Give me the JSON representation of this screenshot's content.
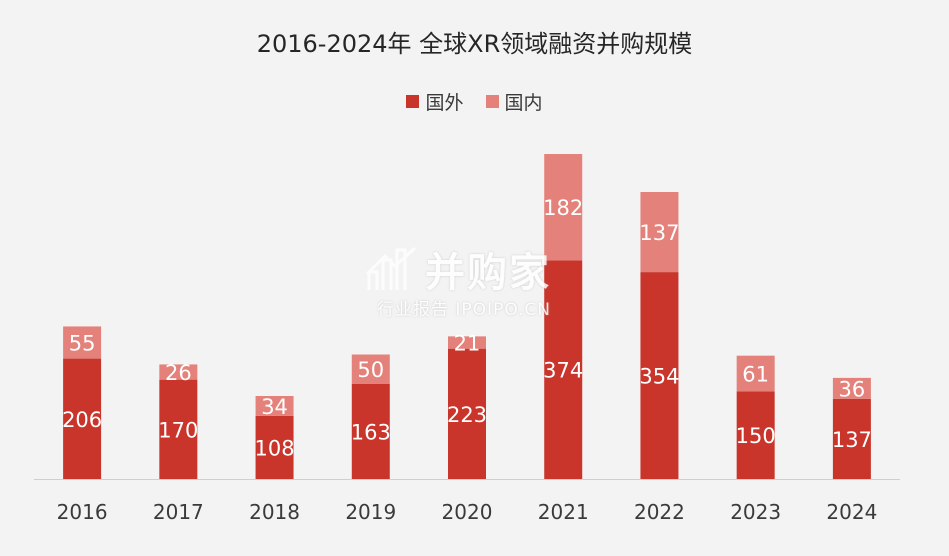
{
  "chart_data": {
    "type": "bar",
    "stacked": true,
    "title": "2016-2024年 全球XR领域融资并购规模",
    "categories": [
      "2016",
      "2017",
      "2018",
      "2019",
      "2020",
      "2021",
      "2022",
      "2023",
      "2024"
    ],
    "series": [
      {
        "name": "国外",
        "color": "#c9352b",
        "values": [
          206,
          170,
          108,
          163,
          223,
          374,
          354,
          150,
          137
        ]
      },
      {
        "name": "国内",
        "color": "#e4817a",
        "values": [
          55,
          26,
          34,
          50,
          21,
          182,
          137,
          61,
          36
        ]
      }
    ],
    "ylim": [
      0,
      580
    ],
    "legend_position": "top-center",
    "grid": false,
    "data_labels": true
  },
  "watermark": {
    "brand": "并购家",
    "subtitle": "行业报告 IPOIPO.CN"
  }
}
